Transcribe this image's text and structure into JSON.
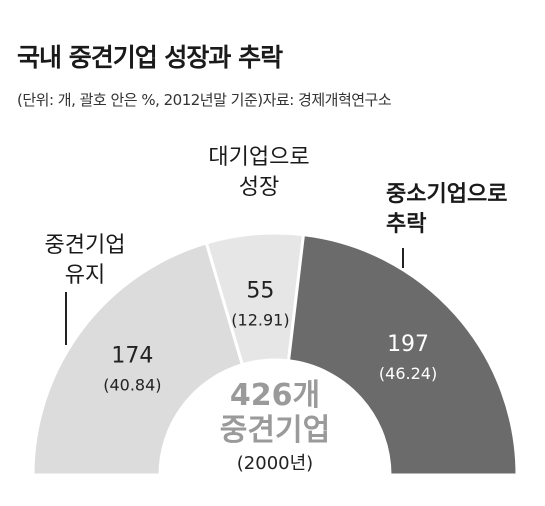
{
  "title": "국내 중견기업 성장과 추락",
  "subtitle": "(단위: 개, 괄호 안은 %, 2012년말 기준)자료: 경제개혁연구소",
  "chart_data": {
    "type": "pie",
    "variant": "half-donut",
    "start": "left",
    "slices": [
      {
        "label_lines": [
          "중견기업",
          "유지"
        ],
        "value": 174,
        "percent_label": "(40.84)",
        "color": "#dcdcdc",
        "label_bold": false
      },
      {
        "label_lines": [
          "대기업으로",
          "성장"
        ],
        "value": 55,
        "percent_label": "(12.91)",
        "color": "#e6e6e6",
        "label_bold": false
      },
      {
        "label_lines": [
          "중소기업으로",
          "추락"
        ],
        "value": 197,
        "percent_label": "(46.24)",
        "color": "#6b6b6b",
        "label_bold": true
      }
    ],
    "center": {
      "total": "426개",
      "label": "중견기업",
      "note": "(2000년)"
    }
  }
}
